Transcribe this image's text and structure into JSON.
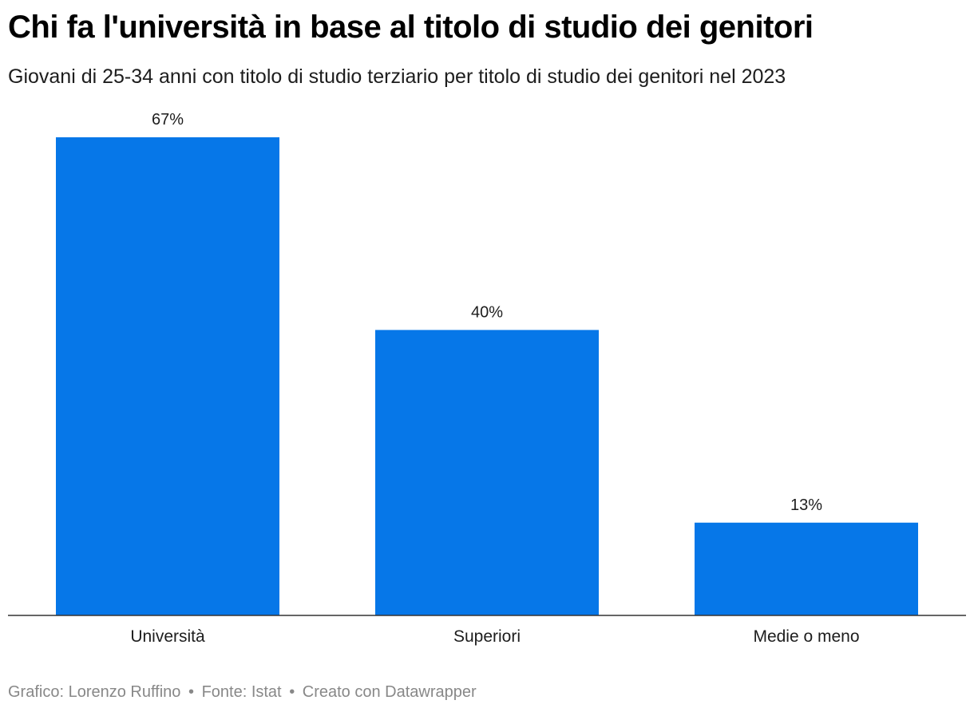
{
  "title": "Chi fa l'università in base al titolo di studio dei genitori",
  "subtitle": "Giovani di 25-34 anni con titolo di studio terziario per titolo di studio dei genitori nel 2023",
  "footer": {
    "credit": "Grafico: Lorenzo Ruffino",
    "separator": "•",
    "source": "Fonte: Istat",
    "created_with": "Creato con Datawrapper"
  },
  "colors": {
    "bar": "#0677e8",
    "baseline": "#333333",
    "text": "#1d1d1d",
    "footer": "#888888"
  },
  "chart_data": {
    "type": "bar",
    "title": "Chi fa l'università in base al titolo di studio dei genitori",
    "subtitle": "Giovani di 25-34 anni con titolo di studio terziario per titolo di studio dei genitori nel 2023",
    "categories": [
      "Università",
      "Superiori",
      "Medie o meno"
    ],
    "values": [
      67,
      40,
      13
    ],
    "value_labels": [
      "67%",
      "40%",
      "13%"
    ],
    "unit": "%",
    "ylim": [
      0,
      67
    ],
    "grid": false,
    "legend": "none"
  }
}
